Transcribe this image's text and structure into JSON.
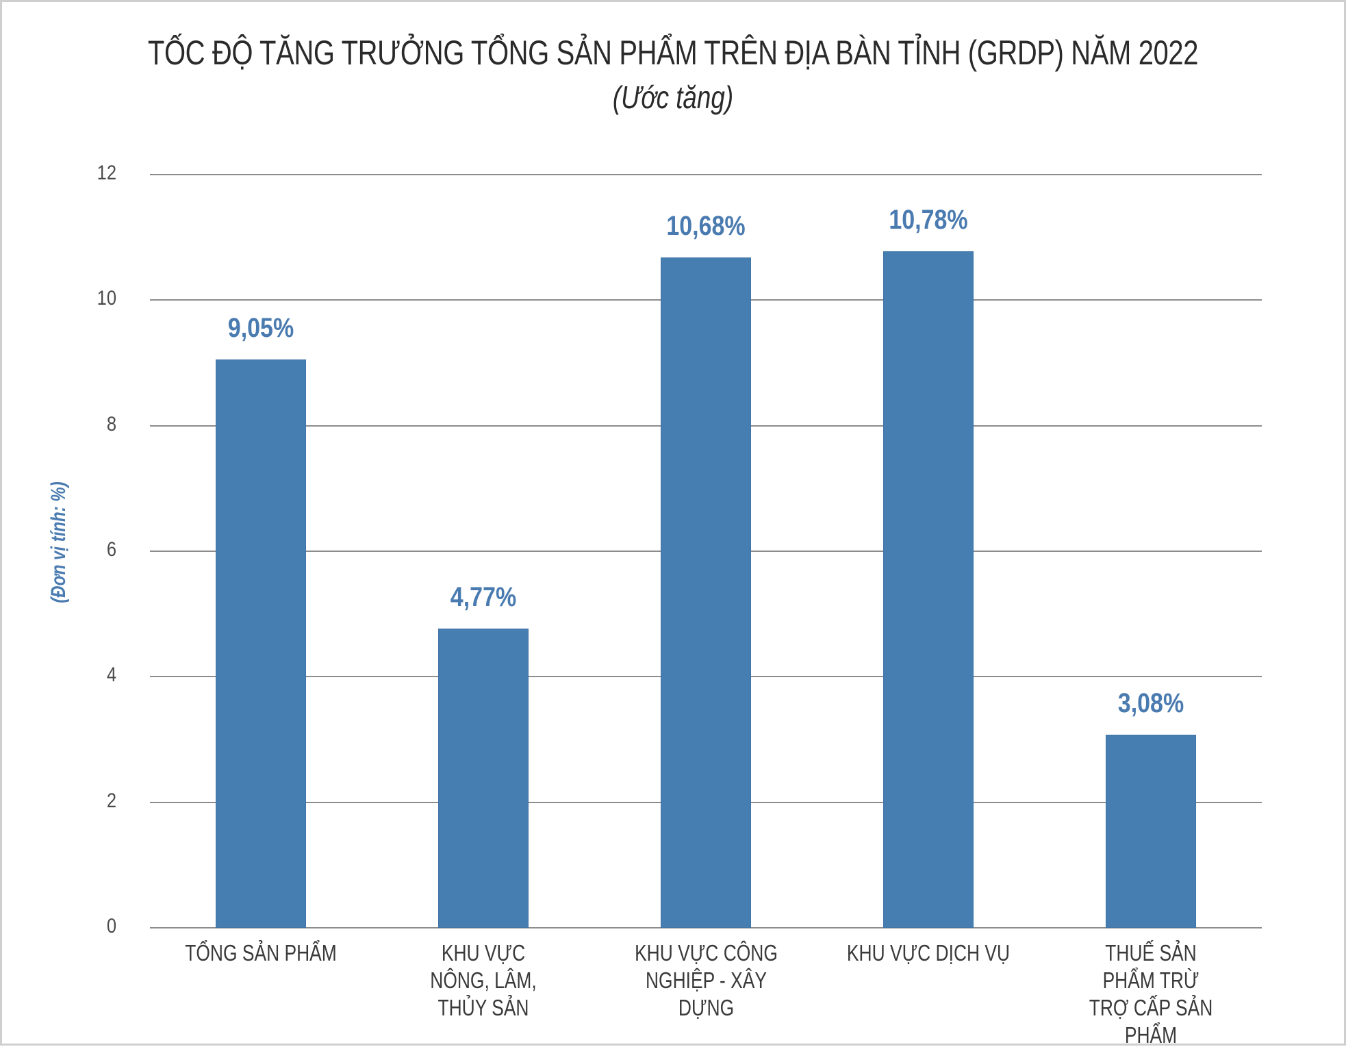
{
  "chart": {
    "title": "TỐC ĐỘ TĂNG TRƯỞNG TỔNG SẢN PHẨM TRÊN ĐỊA BÀN TỈNH (GRDP) NĂM 2022",
    "subtitle": "(Ước tăng)",
    "ylabel": "(Đơn vị tính: %)",
    "yticks": [
      "0",
      "2",
      "4",
      "6",
      "8",
      "10",
      "12"
    ],
    "bars": [
      {
        "category": "TỔNG SẢN PHẨM",
        "label": "9,05%"
      },
      {
        "category": "KHU VỰC NÔNG, LÂM, THỦY SẢN",
        "label": "4,77%"
      },
      {
        "category": "KHU VỰC CÔNG NGHIỆP - XÂY DỰNG",
        "label": "10,68%"
      },
      {
        "category": "KHU VỰC DỊCH VỤ",
        "label": "10,78%"
      },
      {
        "category": "THUẾ SẢN PHẨM TRỪ TRỢ CẤP SẢN PHẨM",
        "label": "3,08%"
      }
    ],
    "colors": {
      "bar": "#477eb1",
      "data_label": "#4a7bb0",
      "gridline": "#8c8c8c",
      "frame": "#cfcfcf"
    }
  },
  "chart_data": {
    "type": "bar",
    "title": "TỐC ĐỘ TĂNG TRƯỞNG TỔNG SẢN PHẨM TRÊN ĐỊA BÀN TỈNH (GRDP) NĂM 2022",
    "subtitle": "(Ước tăng)",
    "categories": [
      "TỔNG SẢN PHẨM",
      "KHU VỰC NÔNG, LÂM, THỦY SẢN",
      "KHU VỰC CÔNG NGHIỆP - XÂY DỰNG",
      "KHU VỰC DỊCH VỤ",
      "THUẾ SẢN PHẨM TRỪ TRỢ CẤP SẢN PHẨM"
    ],
    "values": [
      9.05,
      4.77,
      10.68,
      10.78,
      3.08
    ],
    "data_labels": [
      "9,05%",
      "4,77%",
      "10,68%",
      "10,78%",
      "3,08%"
    ],
    "xlabel": "",
    "ylabel": "(Đơn vị tính: %)",
    "ylim": [
      0,
      12
    ],
    "yticks": [
      0,
      2,
      4,
      6,
      8,
      10,
      12
    ],
    "grid": true,
    "legend": null
  }
}
